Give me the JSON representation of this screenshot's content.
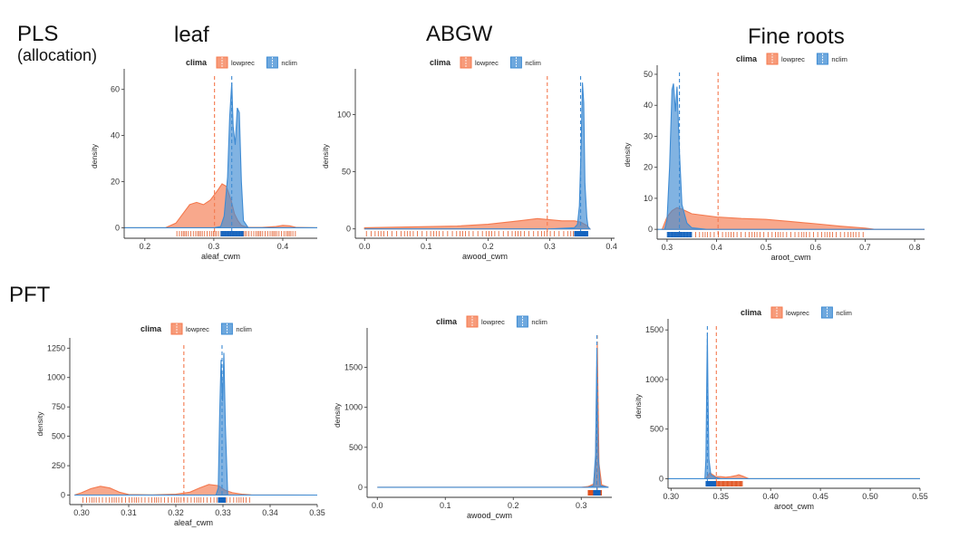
{
  "labels": {
    "pls": "PLS",
    "allocation": "(allocation)",
    "pft": "PFT",
    "col_leaf": "leaf",
    "col_abgw": "ABGW",
    "col_fine_roots": "Fine roots"
  },
  "colors": {
    "lowprec": "#F4794E",
    "nclim": "#3E8BD3",
    "lowprec_rug": "#E0521E",
    "nclim_rug": "#1565C0"
  },
  "chart_data": [
    {
      "id": "pls-leaf",
      "type": "area",
      "legend_title": "clima",
      "legend": [
        "lowprec",
        "nclim"
      ],
      "legend_position": "top",
      "xlabel": "aleaf_cwm",
      "ylabel": "density",
      "xlim": [
        0.17,
        0.45
      ],
      "ylim": [
        -3,
        65
      ],
      "xticks": [
        0.2,
        0.3,
        0.4
      ],
      "xtick_labels": [
        "0.2",
        "0.3",
        "0.4"
      ],
      "yticks": [
        0,
        20,
        40,
        60
      ],
      "ytick_labels": [
        "0",
        "20",
        "40",
        "60"
      ],
      "grid": false,
      "series": [
        {
          "name": "lowprec",
          "mean": 0.301,
          "x": [
            0.17,
            0.23,
            0.245,
            0.255,
            0.265,
            0.275,
            0.285,
            0.295,
            0.305,
            0.312,
            0.318,
            0.325,
            0.33,
            0.335,
            0.34,
            0.345,
            0.35,
            0.37,
            0.39,
            0.4,
            0.41,
            0.42,
            0.45
          ],
          "y": [
            0,
            0,
            2,
            6,
            10,
            11,
            10,
            12,
            16,
            19,
            18,
            12,
            6,
            3,
            1,
            0.5,
            0.2,
            0.1,
            0.5,
            1,
            0.8,
            0.1,
            0
          ]
        },
        {
          "name": "nclim",
          "mean": 0.326,
          "x": [
            0.17,
            0.3,
            0.31,
            0.315,
            0.32,
            0.323,
            0.326,
            0.328,
            0.331,
            0.334,
            0.337,
            0.34,
            0.343,
            0.35,
            0.45
          ],
          "y": [
            0,
            0,
            0.5,
            5,
            22,
            48,
            63,
            44,
            36,
            52,
            50,
            20,
            3,
            0,
            0
          ]
        }
      ]
    },
    {
      "id": "pls-abgw",
      "type": "area",
      "legend_title": "clima",
      "legend": [
        "lowprec",
        "nclim"
      ],
      "legend_position": "top",
      "xlabel": "awood_cwm",
      "ylabel": "density",
      "xlim": [
        -0.015,
        0.405
      ],
      "ylim": [
        -5,
        132
      ],
      "xticks": [
        0.0,
        0.1,
        0.2,
        0.3,
        0.4
      ],
      "xtick_labels": [
        "0.0",
        "0.1",
        "0.2",
        "0.3",
        "0.4"
      ],
      "yticks": [
        0,
        50,
        100
      ],
      "ytick_labels": [
        "0",
        "50",
        "100"
      ],
      "grid": false,
      "series": [
        {
          "name": "lowprec",
          "mean": 0.296,
          "x": [
            0.0,
            0.05,
            0.1,
            0.15,
            0.2,
            0.25,
            0.28,
            0.3,
            0.32,
            0.34,
            0.35,
            0.36,
            0.365
          ],
          "y": [
            1,
            1.5,
            2,
            2.5,
            4,
            7,
            9,
            8,
            7,
            7,
            6,
            3,
            0
          ]
        },
        {
          "name": "nclim",
          "mean": 0.35,
          "x": [
            0.0,
            0.3,
            0.34,
            0.345,
            0.348,
            0.351,
            0.353,
            0.355,
            0.357,
            0.36,
            0.362,
            0.365
          ],
          "y": [
            0,
            0,
            1,
            4,
            20,
            75,
            128,
            110,
            40,
            10,
            2,
            0
          ]
        }
      ]
    },
    {
      "id": "pls-fine-roots",
      "type": "area",
      "legend_title": "clima",
      "legend": [
        "lowprec",
        "nclim"
      ],
      "legend_position": "top",
      "xlabel": "aroot_cwm",
      "ylabel": "density",
      "xlim": [
        0.28,
        0.82
      ],
      "ylim": [
        -2,
        50
      ],
      "xticks": [
        0.3,
        0.4,
        0.5,
        0.6,
        0.7,
        0.8
      ],
      "xtick_labels": [
        "0.3",
        "0.4",
        "0.5",
        "0.6",
        "0.7",
        "0.8"
      ],
      "yticks": [
        0,
        10,
        20,
        30,
        40,
        50
      ],
      "ytick_labels": [
        "0",
        "10",
        "20",
        "30",
        "40",
        "50"
      ],
      "grid": false,
      "series": [
        {
          "name": "lowprec",
          "mean": 0.403,
          "x": [
            0.29,
            0.3,
            0.31,
            0.32,
            0.33,
            0.35,
            0.4,
            0.45,
            0.5,
            0.55,
            0.6,
            0.65,
            0.7,
            0.72,
            0.82
          ],
          "y": [
            0,
            4,
            6,
            7,
            6.5,
            5,
            4,
            3.5,
            3.2,
            2.5,
            1.8,
            1,
            0.4,
            0,
            0
          ]
        },
        {
          "name": "nclim",
          "mean": 0.325,
          "x": [
            0.28,
            0.295,
            0.3,
            0.305,
            0.31,
            0.313,
            0.317,
            0.32,
            0.325,
            0.33,
            0.34,
            0.35,
            0.38,
            0.82
          ],
          "y": [
            0,
            0,
            3,
            20,
            45,
            47,
            38,
            46,
            25,
            8,
            2,
            0.5,
            0,
            0
          ]
        }
      ]
    },
    {
      "id": "pft-leaf",
      "type": "area",
      "legend_title": "clima",
      "legend": [
        "lowprec",
        "nclim"
      ],
      "legend_position": "top",
      "xlabel": "aleaf_cwm",
      "ylabel": "density",
      "xlim": [
        0.2975,
        0.35
      ],
      "ylim": [
        -50,
        1260
      ],
      "xticks": [
        0.3,
        0.31,
        0.32,
        0.33,
        0.34,
        0.35
      ],
      "xtick_labels": [
        "0.30",
        "0.31",
        "0.32",
        "0.33",
        "0.34",
        "0.35"
      ],
      "yticks": [
        0,
        250,
        500,
        750,
        1000,
        1250
      ],
      "ytick_labels": [
        "0",
        "250",
        "500",
        "750",
        "1000",
        "1250"
      ],
      "grid": false,
      "series": [
        {
          "name": "lowprec",
          "mean": 0.3217,
          "x": [
            0.2985,
            0.3,
            0.302,
            0.304,
            0.306,
            0.308,
            0.31,
            0.315,
            0.32,
            0.323,
            0.325,
            0.327,
            0.329,
            0.3305,
            0.332,
            0.334,
            0.336,
            0.35
          ],
          "y": [
            0,
            20,
            55,
            75,
            60,
            25,
            5,
            2,
            8,
            25,
            60,
            90,
            80,
            40,
            20,
            8,
            2,
            0
          ]
        },
        {
          "name": "nclim",
          "mean": 0.3298,
          "x": [
            0.2985,
            0.3285,
            0.329,
            0.3293,
            0.3296,
            0.3299,
            0.3302,
            0.3305,
            0.331,
            0.35
          ],
          "y": [
            0,
            0,
            60,
            700,
            1150,
            800,
            1210,
            600,
            0,
            0
          ]
        }
      ]
    },
    {
      "id": "pft-abgw",
      "type": "area",
      "legend_title": "clima",
      "legend": [
        "lowprec",
        "nclim"
      ],
      "legend_position": "top",
      "xlabel": "awood_cwm",
      "ylabel": "density",
      "xlim": [
        -0.015,
        0.345
      ],
      "ylim": [
        -80,
        1880
      ],
      "xticks": [
        0.0,
        0.1,
        0.2,
        0.3
      ],
      "xtick_labels": [
        "0.0",
        "0.1",
        "0.2",
        "0.3"
      ],
      "yticks": [
        0,
        500,
        1000,
        1500
      ],
      "ytick_labels": [
        "0",
        "500",
        "1000",
        "1500"
      ],
      "grid": false,
      "series": [
        {
          "name": "lowprec",
          "mean": 0.3235,
          "x": [
            0.0,
            0.3,
            0.31,
            0.318,
            0.321,
            0.3235,
            0.326,
            0.33,
            0.34
          ],
          "y": [
            0,
            0,
            10,
            40,
            300,
            1820,
            300,
            30,
            0
          ]
        },
        {
          "name": "nclim",
          "mean": 0.323,
          "x": [
            0.0,
            0.31,
            0.318,
            0.321,
            0.323,
            0.325,
            0.328,
            0.34
          ],
          "y": [
            0,
            0,
            20,
            400,
            1700,
            400,
            20,
            0
          ]
        }
      ]
    },
    {
      "id": "pft-fine-roots",
      "type": "area",
      "legend_title": "clima",
      "legend": [
        "lowprec",
        "nclim"
      ],
      "legend_position": "top",
      "xlabel": "aroot_cwm",
      "ylabel": "density",
      "xlim": [
        0.297,
        0.55
      ],
      "ylim": [
        -60,
        1520
      ],
      "xticks": [
        0.3,
        0.35,
        0.4,
        0.45,
        0.5,
        0.55
      ],
      "xtick_labels": [
        "0.30",
        "0.35",
        "0.40",
        "0.45",
        "0.50",
        "0.55"
      ],
      "yticks": [
        0,
        500,
        1000,
        1500
      ],
      "ytick_labels": [
        "0",
        "500",
        "1000",
        "1500"
      ],
      "grid": false,
      "series": [
        {
          "name": "lowprec",
          "mean": 0.3455,
          "x": [
            0.335,
            0.337,
            0.339,
            0.342,
            0.345,
            0.35,
            0.355,
            0.36,
            0.365,
            0.368,
            0.372,
            0.378,
            0.55
          ],
          "y": [
            0,
            30,
            60,
            40,
            20,
            20,
            15,
            20,
            30,
            40,
            25,
            0,
            0
          ]
        },
        {
          "name": "nclim",
          "mean": 0.3365,
          "x": [
            0.297,
            0.334,
            0.335,
            0.336,
            0.3365,
            0.337,
            0.338,
            0.34,
            0.345,
            0.35,
            0.55
          ],
          "y": [
            0,
            0,
            200,
            1100,
            1470,
            900,
            200,
            40,
            10,
            0,
            0
          ]
        }
      ]
    }
  ]
}
